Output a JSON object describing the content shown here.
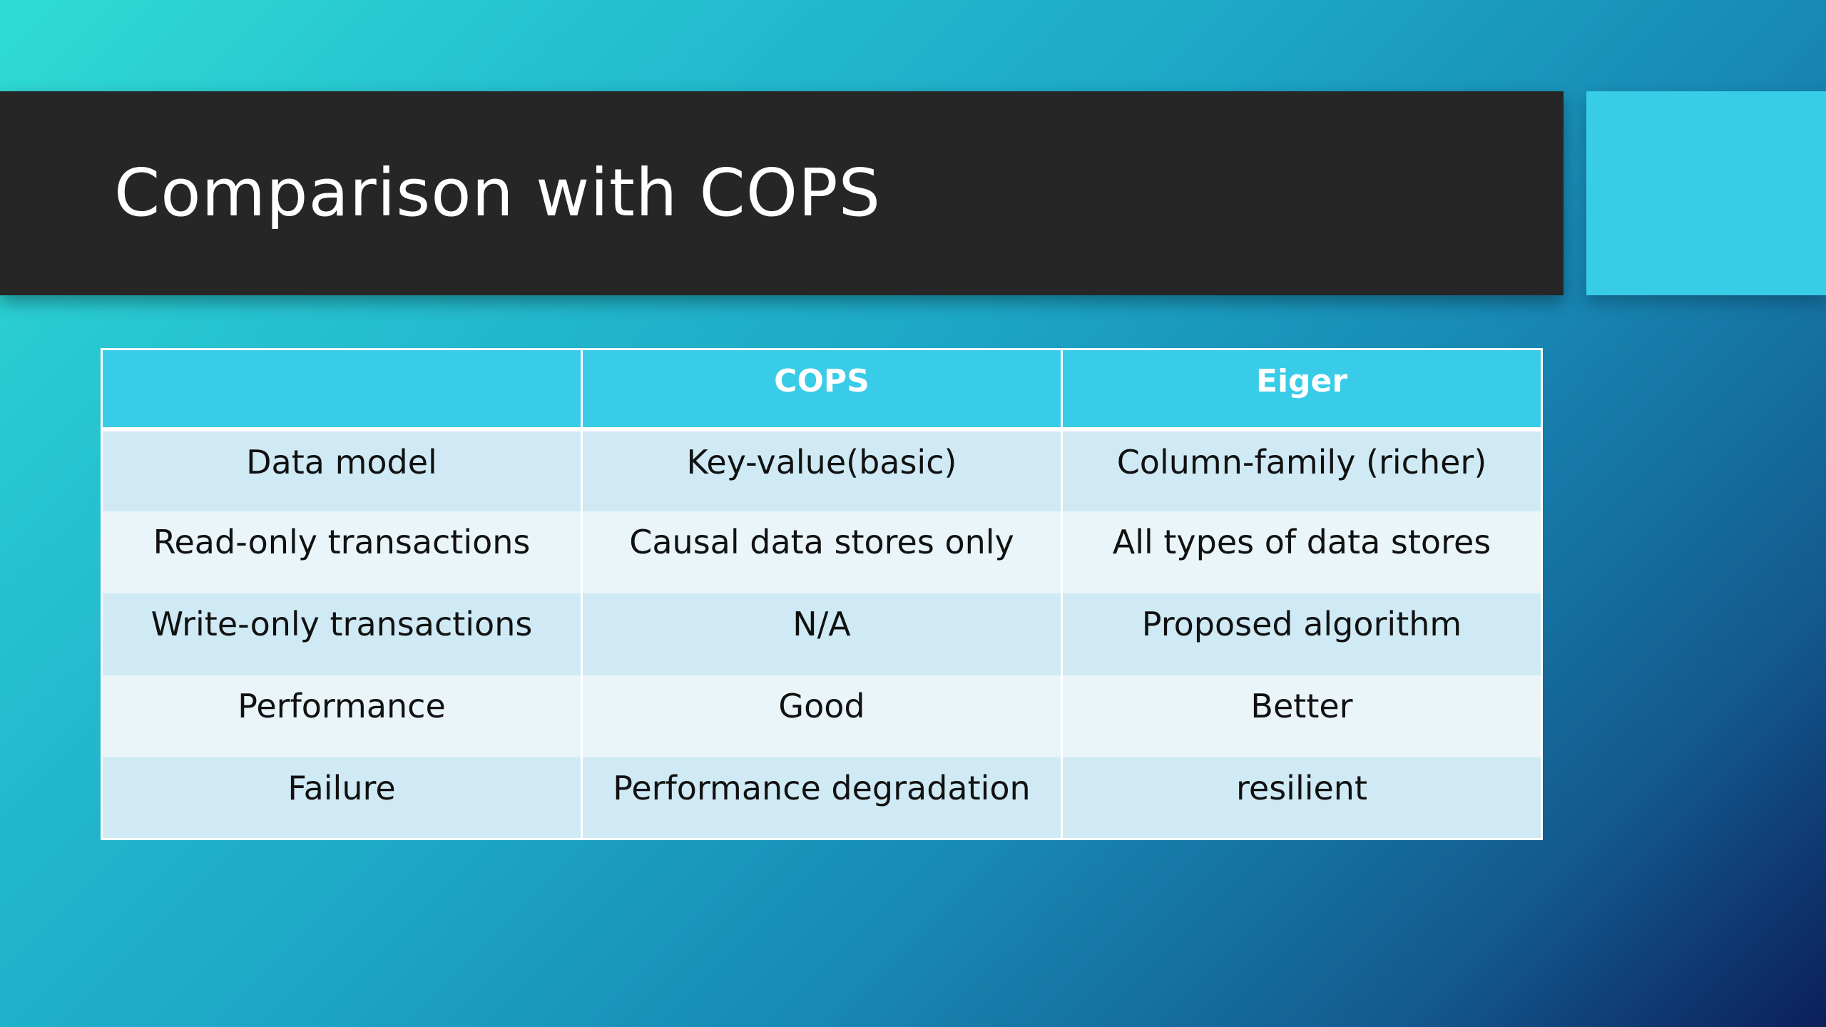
{
  "slide": {
    "title": "Comparison with COPS"
  },
  "table": {
    "headers": [
      "",
      "COPS",
      "Eiger"
    ],
    "rows": [
      [
        "Data model",
        "Key-value(basic)",
        "Column-family (richer)"
      ],
      [
        "Read-only transactions",
        "Causal data stores only",
        "All types of data stores"
      ],
      [
        "Write-only transactions",
        "N/A",
        "Proposed algorithm"
      ],
      [
        "Performance",
        "Good",
        "Better"
      ],
      [
        "Failure",
        "Performance degradation",
        "resilient"
      ]
    ]
  },
  "colors": {
    "title_bar": "#262626",
    "accent": "#38cde6",
    "header_fill": "#38cce8",
    "row_odd": "#cfeaf4",
    "row_even": "#e9f5f8"
  }
}
